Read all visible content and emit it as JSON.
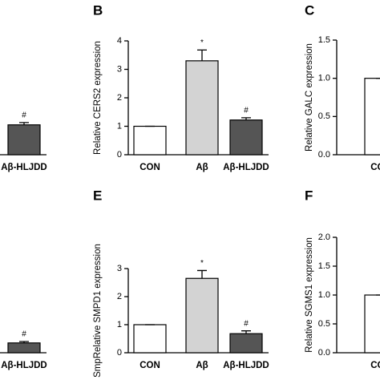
{
  "chart_data": [
    {
      "type": "bar",
      "categories": [
        "Aβ-HLJDD"
      ],
      "values": [
        1.05
      ],
      "errors": [
        0.08
      ],
      "markers": [
        "#"
      ],
      "colors": [
        "#555555"
      ],
      "ylim": [
        0,
        4
      ]
    },
    {
      "type": "bar",
      "label": "B",
      "y_label": "Relative CERS2  expression",
      "categories": [
        "CON",
        "Aβ",
        "Aβ-HLJDD"
      ],
      "values": [
        1.0,
        3.3,
        1.22
      ],
      "errors": [
        0,
        0.38,
        0.08
      ],
      "markers": [
        null,
        "*",
        "#"
      ],
      "colors": [
        "#ffffff",
        "#d3d3d3",
        "#555555"
      ],
      "ylim": [
        0,
        4
      ],
      "yticks": [
        0,
        1,
        2,
        3,
        4
      ]
    },
    {
      "type": "bar",
      "label": "C",
      "y_label": "Relative GALC expression",
      "categories": [
        "CON"
      ],
      "values": [
        1.0
      ],
      "errors": [
        0
      ],
      "markers": [
        null
      ],
      "colors": [
        "#ffffff"
      ],
      "ylim": [
        0,
        1.5
      ],
      "yticks": [
        {
          "value": 0,
          "label": "0.0"
        },
        0.5,
        {
          "value": 1,
          "label": "1.0"
        },
        1.5
      ]
    },
    {
      "type": "bar",
      "categories": [
        "Aβ-HLJDD"
      ],
      "values": [
        0.35
      ],
      "errors": [
        0.05
      ],
      "markers": [
        "#"
      ],
      "colors": [
        "#555555"
      ],
      "ylim": [
        0,
        3
      ]
    },
    {
      "type": "bar",
      "label": "E",
      "y_label": "SmpRelative SMPD1 expression",
      "categories": [
        "CON",
        "Aβ",
        "Aβ-HLJDD"
      ],
      "values": [
        1.0,
        2.65,
        0.68
      ],
      "errors": [
        0,
        0.28,
        0.1
      ],
      "markers": [
        null,
        "*",
        "#"
      ],
      "colors": [
        "#ffffff",
        "#d3d3d3",
        "#555555"
      ],
      "ylim": [
        0,
        3
      ],
      "yticks": [
        0,
        1,
        2,
        3
      ]
    },
    {
      "type": "bar",
      "label": "F",
      "y_label": "Relative SGMS1 expression",
      "categories": [
        "CON"
      ],
      "values": [
        1.0
      ],
      "errors": [
        0
      ],
      "markers": [
        null
      ],
      "colors": [
        "#ffffff"
      ],
      "ylim": [
        0,
        2
      ],
      "yticks": [
        {
          "value": 0,
          "label": "0.0"
        },
        0.5,
        {
          "value": 1,
          "label": "1.0"
        },
        1.5,
        {
          "value": 2,
          "label": "2.0"
        }
      ]
    }
  ]
}
